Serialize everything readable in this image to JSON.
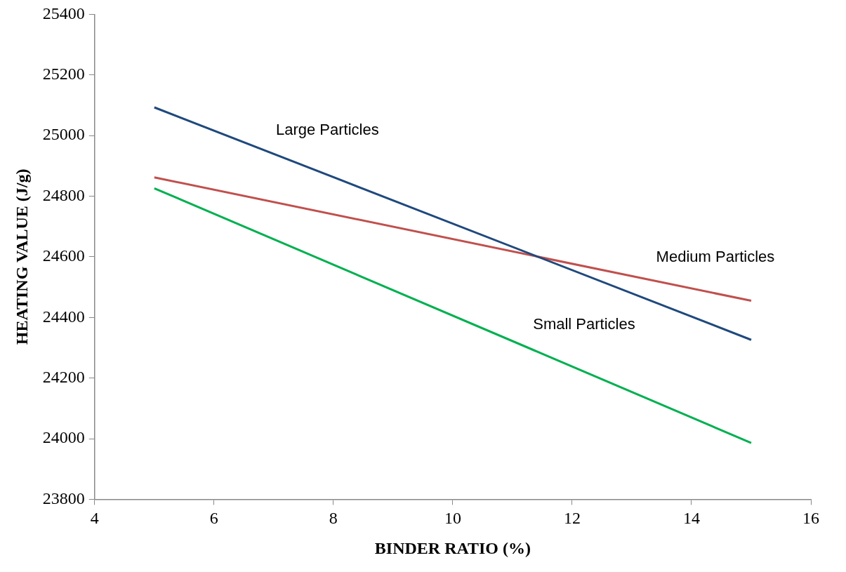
{
  "chart_data": {
    "type": "line",
    "xlabel": "BINDER RATIO (%)",
    "ylabel": "HEATING VALUE (J/g)",
    "x": [
      5,
      15
    ],
    "series": [
      {
        "name": "Large Particles",
        "color": "#1f497d",
        "values": [
          25093,
          24326
        ]
      },
      {
        "name": "Medium Particles",
        "color": "#c0504d",
        "values": [
          24862,
          24455
        ]
      },
      {
        "name": "Small Particles",
        "color": "#00b050",
        "values": [
          24826,
          23986
        ]
      }
    ],
    "xlim": [
      4,
      16
    ],
    "xticks": [
      4,
      6,
      8,
      10,
      12,
      14,
      16
    ],
    "ylim": [
      23800,
      25400
    ],
    "yticks": [
      23800,
      24000,
      24200,
      24400,
      24600,
      24800,
      25000,
      25200,
      25400
    ],
    "grid": false,
    "legend": false,
    "marker": "none",
    "line_style": "solid"
  }
}
